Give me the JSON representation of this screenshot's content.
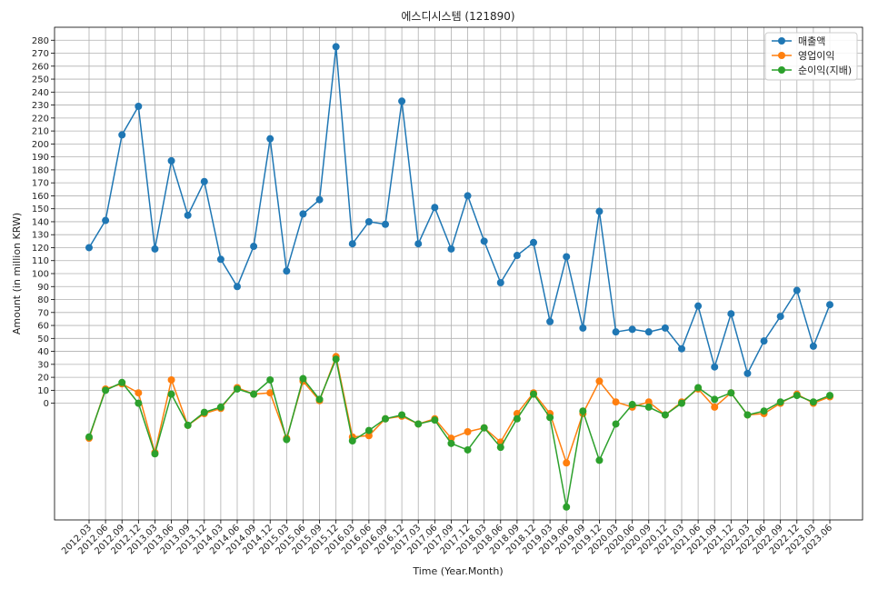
{
  "chart_data": {
    "type": "line",
    "title": "에스디시스템 (121890)",
    "xlabel": "Time (Year.Month)",
    "ylabel": "Amount (in million KRW)",
    "ylim": [
      -90,
      290
    ],
    "yticks": [
      0,
      10,
      20,
      30,
      40,
      50,
      60,
      70,
      80,
      90,
      100,
      110,
      120,
      130,
      140,
      150,
      160,
      170,
      180,
      190,
      200,
      210,
      220,
      230,
      240,
      250,
      260,
      270,
      280
    ],
    "grid": true,
    "legend_position": "top-right",
    "categories": [
      "2012.03",
      "2012.06",
      "2012.09",
      "2012.12",
      "2013.03",
      "2013.06",
      "2013.09",
      "2013.12",
      "2014.03",
      "2014.06",
      "2014.09",
      "2014.12",
      "2015.03",
      "2015.06",
      "2015.09",
      "2015.12",
      "2016.03",
      "2016.06",
      "2016.09",
      "2016.12",
      "2017.03",
      "2017.06",
      "2017.09",
      "2017.12",
      "2018.03",
      "2018.06",
      "2018.09",
      "2018.12",
      "2019.03",
      "2019.06",
      "2019.09",
      "2019.12",
      "2020.03",
      "2020.06",
      "2020.09",
      "2020.12",
      "2021.03",
      "2021.06",
      "2021.09",
      "2021.12",
      "2022.03",
      "2022.06",
      "2022.09",
      "2022.12",
      "2023.03",
      "2023.06"
    ],
    "series": [
      {
        "name": "매출액",
        "color": "#1f77b4",
        "values": [
          120,
          141,
          207,
          229,
          119,
          187,
          145,
          171,
          111,
          90,
          121,
          204,
          102,
          146,
          157,
          275,
          123,
          140,
          138,
          233,
          123,
          151,
          119,
          160,
          125,
          93,
          114,
          124,
          63,
          113,
          58,
          148,
          55,
          57,
          55,
          58,
          42,
          75,
          28,
          69,
          23,
          48,
          67,
          87,
          44,
          76
        ]
      },
      {
        "name": "영업이익",
        "color": "#ff7f0e",
        "values": [
          -27,
          11,
          15,
          8,
          -38,
          18,
          -17,
          -8,
          -4,
          12,
          7,
          8,
          -27,
          17,
          2,
          36,
          -26,
          -25,
          -12,
          -10,
          -16,
          -12,
          -27,
          -22,
          -19,
          -30,
          -8,
          8,
          -8,
          -46,
          -8,
          17,
          1,
          -3,
          1,
          -9,
          1,
          11,
          -3,
          8,
          -9,
          -8,
          0,
          7,
          0,
          5
        ]
      },
      {
        "name": "순이익(지배)",
        "color": "#2ca02c",
        "values": [
          -26,
          10,
          16,
          0,
          -39,
          7,
          -17,
          -7,
          -3,
          11,
          7,
          18,
          -28,
          19,
          3,
          34,
          -29,
          -21,
          -12,
          -9,
          -16,
          -13,
          -31,
          -36,
          -19,
          -34,
          -12,
          7,
          -11,
          -80,
          -6,
          -44,
          -16,
          -1,
          -3,
          -9,
          0,
          12,
          3,
          8,
          -9,
          -6,
          1,
          6,
          1,
          6
        ]
      }
    ]
  }
}
